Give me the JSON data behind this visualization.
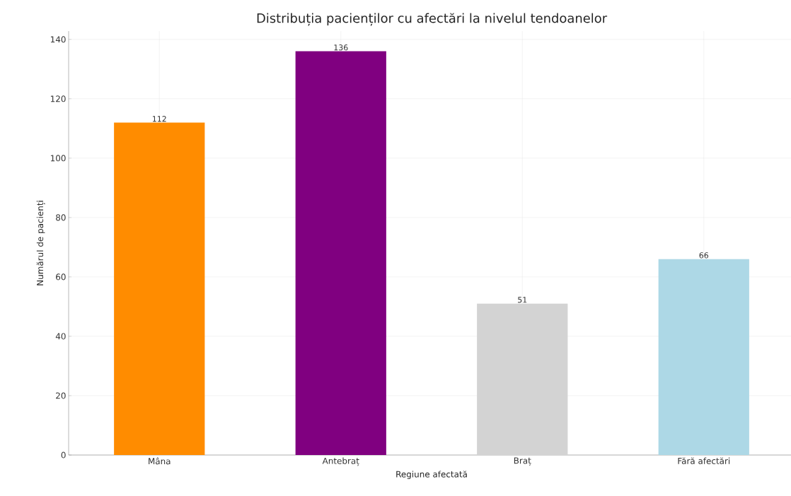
{
  "chart_data": {
    "type": "bar",
    "title": "Distribuția pacienților cu afectări la nivelul tendoanelor",
    "xlabel": "Regiune afectată",
    "ylabel": "Numărul de pacienți",
    "categories": [
      "Mâna",
      "Antebraț",
      "Braț",
      "Fără afectări"
    ],
    "values": [
      112,
      136,
      51,
      66
    ],
    "colors": [
      "#ff8c00",
      "#800080",
      "#d3d3d3",
      "#add8e6"
    ],
    "ylim": [
      0,
      142.8
    ],
    "yticks": [
      0,
      20,
      40,
      60,
      80,
      100,
      120,
      140
    ],
    "grid": true,
    "data_labels": true
  }
}
